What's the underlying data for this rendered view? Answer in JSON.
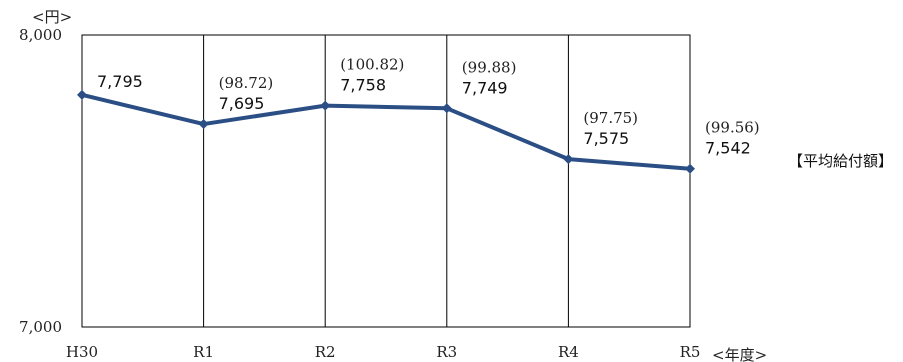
{
  "chart_data": {
    "type": "line",
    "unit_label": "<円>",
    "x_axis_label": "<年度>",
    "categories": [
      "H30",
      "R1",
      "R2",
      "R3",
      "R4",
      "R5"
    ],
    "ylim": [
      7000,
      8000
    ],
    "yticks": [
      "8,000",
      "7,000"
    ],
    "series": [
      {
        "name": "【平均給付額】",
        "values": [
          7795,
          7695,
          7758,
          7749,
          7575,
          7542
        ],
        "value_labels": [
          "7,795",
          "7,695",
          "7,758",
          "7,749",
          "7,575",
          "7,542"
        ],
        "ratio_labels": [
          "",
          "(98.72)",
          "(100.82)",
          "(99.88)",
          "(97.75)",
          "(99.56)"
        ]
      }
    ],
    "grid": "vertical",
    "line_color": "#2b4f85",
    "legend": "right"
  }
}
